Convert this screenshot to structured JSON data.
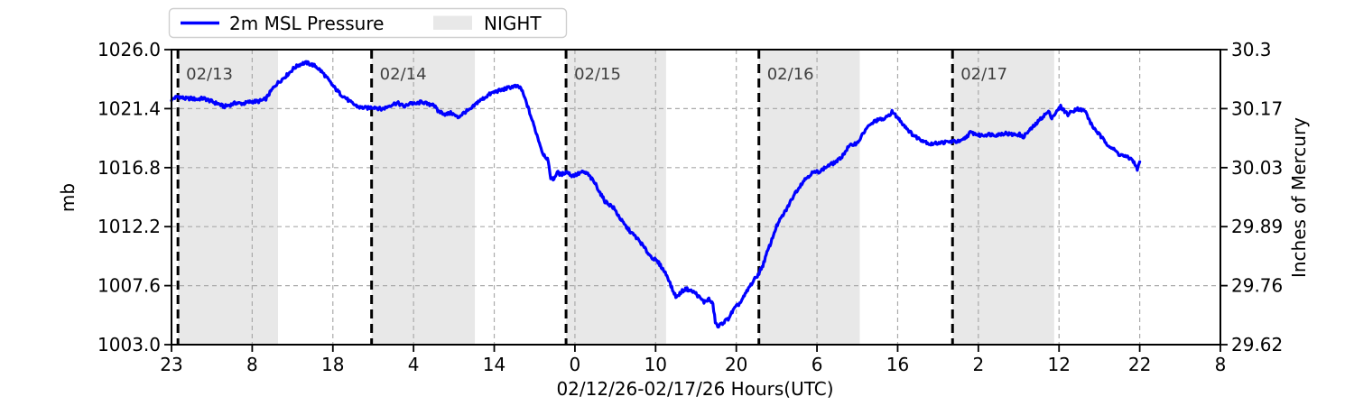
{
  "chart_data": {
    "type": "line",
    "title": "",
    "xlabel": "02/12/26-02/17/26  Hours(UTC)",
    "ylabel_left": "mb",
    "ylabel_right": "Inches of Mercury",
    "legend": {
      "position": "top-left",
      "entries": [
        {
          "label": "2m MSL Pressure",
          "kind": "line",
          "color": "#0000ff"
        },
        {
          "label": "NIGHT",
          "kind": "patch",
          "color": "#e8e8e8"
        }
      ]
    },
    "x_axis": {
      "range_hours": [
        0,
        130
      ],
      "tick_positions_hours": [
        0,
        10,
        20,
        30,
        40,
        50,
        60,
        70,
        80,
        90,
        100,
        110,
        120,
        130
      ],
      "tick_labels": [
        "23",
        "8",
        "18",
        "4",
        "14",
        "0",
        "10",
        "20",
        "6",
        "16",
        "2",
        "12",
        "22",
        "8"
      ]
    },
    "y_axis_left": {
      "range_mb": [
        1003.0,
        1026.0
      ],
      "tick_values": [
        1026.0,
        1021.4,
        1016.8,
        1012.2,
        1007.6,
        1003.0
      ],
      "tick_labels": [
        "1026.0",
        "1021.4",
        "1016.8",
        "1012.2",
        "1007.6",
        "1003.0"
      ]
    },
    "y_axis_right": {
      "tick_labels": [
        "30.3",
        "30.17",
        "30.03",
        "29.89",
        "29.76",
        "29.62"
      ]
    },
    "day_markers": [
      {
        "label": "02/13",
        "hour": 0.8
      },
      {
        "label": "02/14",
        "hour": 24.8
      },
      {
        "label": "02/15",
        "hour": 48.9
      },
      {
        "label": "02/16",
        "hour": 72.8
      },
      {
        "label": "02/17",
        "hour": 96.8
      }
    ],
    "night_bands_hours": [
      [
        0.8,
        13.2
      ],
      [
        24.8,
        37.6
      ],
      [
        48.9,
        61.3
      ],
      [
        72.8,
        85.3
      ],
      [
        96.8,
        109.4
      ]
    ],
    "grid": true,
    "series": [
      {
        "name": "2m MSL Pressure",
        "color": "#0000ff",
        "points": [
          [
            0,
            1022.1
          ],
          [
            0.8,
            1022.3
          ],
          [
            1.6,
            1022.2
          ],
          [
            2.4,
            1022.25
          ],
          [
            3.2,
            1022.1
          ],
          [
            4,
            1022.15
          ],
          [
            5,
            1022.0
          ],
          [
            5.8,
            1021.8
          ],
          [
            6.5,
            1021.5
          ],
          [
            7.2,
            1021.65
          ],
          [
            8,
            1021.9
          ],
          [
            9,
            1021.8
          ],
          [
            10,
            1021.9
          ],
          [
            10.8,
            1022.0
          ],
          [
            11.7,
            1022.2
          ],
          [
            12.9,
            1023.2
          ],
          [
            14,
            1023.9
          ],
          [
            15.1,
            1024.5
          ],
          [
            16.2,
            1024.9
          ],
          [
            16.8,
            1025.0
          ],
          [
            17.5,
            1024.85
          ],
          [
            17.9,
            1024.7
          ],
          [
            18.8,
            1024.1
          ],
          [
            19.9,
            1023.3
          ],
          [
            21,
            1022.5
          ],
          [
            22.1,
            1021.9
          ],
          [
            23.3,
            1021.55
          ],
          [
            24.4,
            1021.4
          ],
          [
            25.2,
            1021.5
          ],
          [
            26,
            1021.4
          ],
          [
            26.9,
            1021.6
          ],
          [
            28,
            1021.8
          ],
          [
            28.9,
            1021.6
          ],
          [
            29.6,
            1021.9
          ],
          [
            30.2,
            1021.7
          ],
          [
            31.1,
            1021.9
          ],
          [
            31.9,
            1021.75
          ],
          [
            32.4,
            1021.85
          ],
          [
            33,
            1021.2
          ],
          [
            34,
            1020.9
          ],
          [
            34.7,
            1021.1
          ],
          [
            35.5,
            1020.75
          ],
          [
            36,
            1020.95
          ],
          [
            36.4,
            1021.1
          ],
          [
            37,
            1021.25
          ],
          [
            38,
            1022.0
          ],
          [
            39.2,
            1022.4
          ],
          [
            40.3,
            1022.75
          ],
          [
            41.4,
            1023.0
          ],
          [
            42.5,
            1023.1
          ],
          [
            43.3,
            1023.0
          ],
          [
            44,
            1021.9
          ],
          [
            45,
            1019.9
          ],
          [
            46,
            1017.9
          ],
          [
            46.6,
            1017.5
          ],
          [
            47.0,
            1016.1
          ],
          [
            47.3,
            1015.9
          ],
          [
            47.8,
            1016.45
          ],
          [
            48.3,
            1016.2
          ],
          [
            49,
            1016.45
          ],
          [
            49.6,
            1016.2
          ],
          [
            50.2,
            1016.3
          ],
          [
            50.8,
            1016.45
          ],
          [
            51.5,
            1016.3
          ],
          [
            52.6,
            1015.5
          ],
          [
            53.7,
            1014.2
          ],
          [
            54.8,
            1013.6
          ],
          [
            55.9,
            1012.6
          ],
          [
            57,
            1011.7
          ],
          [
            58.2,
            1010.9
          ],
          [
            59.3,
            1010.0
          ],
          [
            60.4,
            1009.3
          ],
          [
            61.5,
            1008.3
          ],
          [
            62.1,
            1007.3
          ],
          [
            62.6,
            1006.7
          ],
          [
            63.2,
            1007.1
          ],
          [
            63.8,
            1007.3
          ],
          [
            64.9,
            1007.1
          ],
          [
            65.6,
            1006.6
          ],
          [
            66,
            1006.3
          ],
          [
            66.6,
            1006.5
          ],
          [
            67.1,
            1006.1
          ],
          [
            67.4,
            1004.8
          ],
          [
            67.7,
            1004.4
          ],
          [
            68.2,
            1004.7
          ],
          [
            69,
            1005.0
          ],
          [
            69.7,
            1005.7
          ],
          [
            70.5,
            1006.3
          ],
          [
            71.6,
            1007.5
          ],
          [
            72.7,
            1008.4
          ],
          [
            73.3,
            1009.2
          ],
          [
            73.8,
            1010.2
          ],
          [
            74.4,
            1011.2
          ],
          [
            74.9,
            1012.1
          ],
          [
            76.1,
            1013.4
          ],
          [
            77.2,
            1014.8
          ],
          [
            78.3,
            1015.7
          ],
          [
            79.4,
            1016.4
          ],
          [
            80.5,
            1016.6
          ],
          [
            81.1,
            1016.8
          ],
          [
            82,
            1017.1
          ],
          [
            82.8,
            1017.5
          ],
          [
            83.9,
            1018.4
          ],
          [
            85,
            1018.7
          ],
          [
            86.1,
            1019.9
          ],
          [
            87.2,
            1020.4
          ],
          [
            88.4,
            1020.6
          ],
          [
            89.3,
            1021.2
          ],
          [
            90.6,
            1020.2
          ],
          [
            91.7,
            1019.5
          ],
          [
            92.8,
            1019.0
          ],
          [
            94,
            1018.6
          ],
          [
            95.1,
            1018.8
          ],
          [
            96.2,
            1018.75
          ],
          [
            96.8,
            1018.8
          ],
          [
            97.9,
            1018.9
          ],
          [
            99,
            1019.5
          ],
          [
            100.1,
            1019.3
          ],
          [
            101.2,
            1019.45
          ],
          [
            102.3,
            1019.3
          ],
          [
            103.4,
            1019.5
          ],
          [
            104.5,
            1019.4
          ],
          [
            105.1,
            1019.35
          ],
          [
            105.5,
            1019.1
          ],
          [
            106.6,
            1019.9
          ],
          [
            107.7,
            1020.6
          ],
          [
            108.7,
            1021.1
          ],
          [
            109.1,
            1020.7
          ],
          [
            110.2,
            1021.6
          ],
          [
            111.1,
            1020.9
          ],
          [
            112.2,
            1021.4
          ],
          [
            113.2,
            1021.3
          ],
          [
            114.1,
            1020.0
          ],
          [
            115.2,
            1019.2
          ],
          [
            116.3,
            1018.5
          ],
          [
            117.1,
            1018.0
          ],
          [
            117.4,
            1017.8
          ],
          [
            118.6,
            1017.6
          ],
          [
            119.1,
            1017.5
          ],
          [
            119.5,
            1016.9
          ],
          [
            119.7,
            1016.7
          ],
          [
            120,
            1017.2
          ]
        ]
      }
    ],
    "colors": {
      "line": "#0000ff",
      "night_fill": "#e8e8e8",
      "gridline": "#aaaaaa",
      "day_line": "#000000",
      "day_label": "#404040",
      "spine": "#000000",
      "legend_border": "#cfcfcf",
      "background": "#ffffff",
      "tick_text": "#000000"
    }
  }
}
